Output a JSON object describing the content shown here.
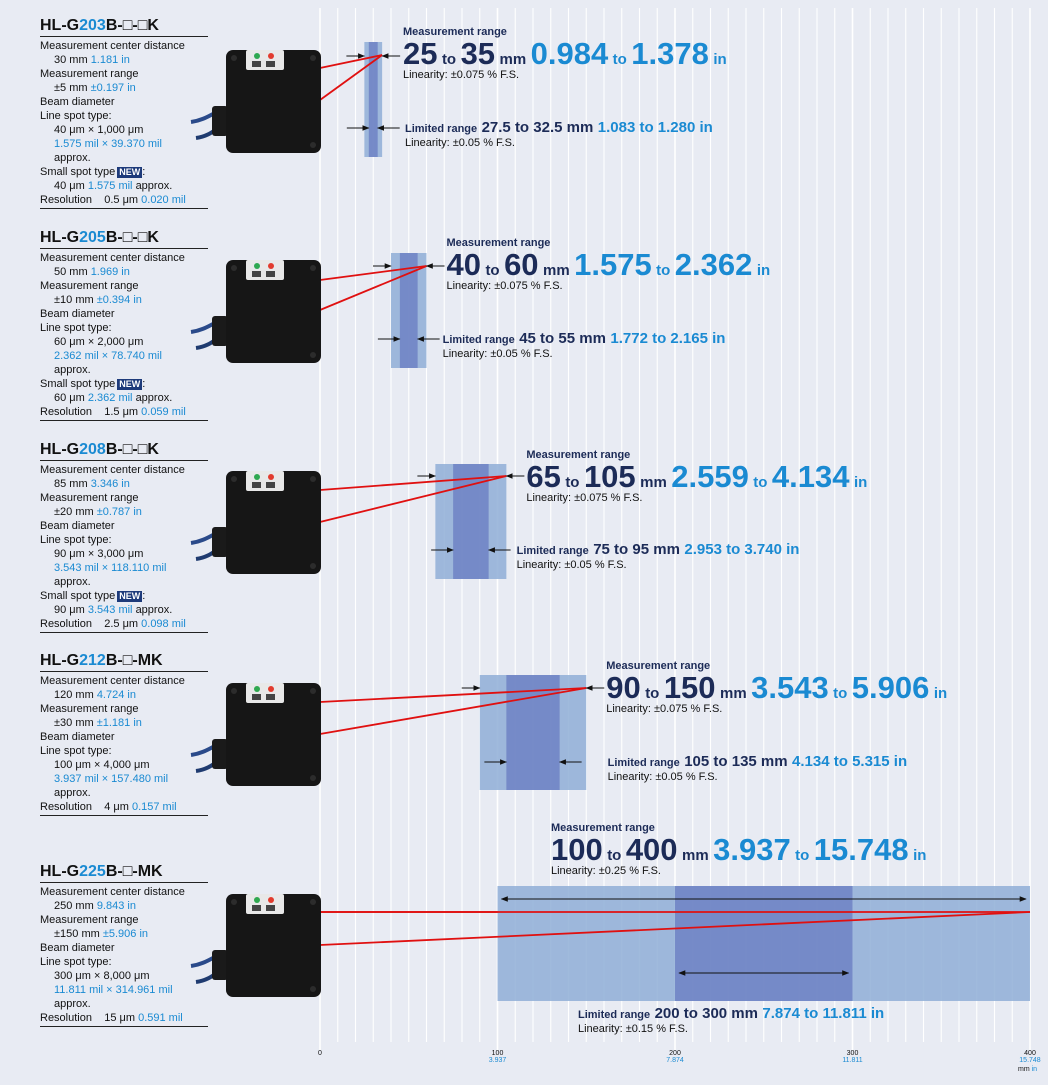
{
  "models": [
    {
      "prefix": "HL-G",
      "num": "203",
      "suffix": "B-□-□K",
      "specs": [
        {
          "t": "Measurement center distance"
        },
        {
          "t": "30 mm",
          "b": "1.181 in",
          "i": true
        },
        {
          "t": "Measurement range"
        },
        {
          "t": "±5 mm",
          "b": "±0.197 in",
          "i": true
        },
        {
          "t": "Beam diameter"
        },
        {
          "t": "Line spot type:"
        },
        {
          "t": "40 μm × 1,000 μm",
          "i": true
        },
        {
          "b": "1.575 mil × 39.370 mil",
          "i": true
        },
        {
          "t": "approx.",
          "i": true
        },
        {
          "t": "Small spot type",
          "badge": "NEW",
          "after": ":"
        },
        {
          "t": "40 μm",
          "b": "1.575 mil",
          "after": "approx.",
          "i": true
        },
        {
          "t": "Resolution",
          "v": "0.5 μm",
          "b": "0.020 mil",
          "last": true
        }
      ],
      "range": {
        "caption": "Measurement range",
        "mm_min": "25",
        "mm_max": "35",
        "in_min": "0.984",
        "in_max": "1.378",
        "linearity": "Linearity: ±0.075 % F.S."
      },
      "limited": {
        "caption": "Limited range",
        "mm": "27.5 to 32.5 mm",
        "inch": "1.083 to 1.280 in",
        "linearity": "Linearity: ±0.05 % F.S."
      },
      "axis_range": [
        25,
        35
      ],
      "axis_limited": [
        27.5,
        32.5
      ]
    },
    {
      "prefix": "HL-G",
      "num": "205",
      "suffix": "B-□-□K",
      "specs": [
        {
          "t": "Measurement center distance"
        },
        {
          "t": "50 mm",
          "b": "1.969 in",
          "i": true
        },
        {
          "t": "Measurement range"
        },
        {
          "t": "±10 mm",
          "b": "±0.394 in",
          "i": true
        },
        {
          "t": "Beam diameter"
        },
        {
          "t": "Line spot type:"
        },
        {
          "t": "60 μm × 2,000 μm",
          "i": true
        },
        {
          "b": "2.362 mil × 78.740 mil",
          "i": true
        },
        {
          "t": "approx.",
          "i": true
        },
        {
          "t": "Small spot type",
          "badge": "NEW",
          "after": ":"
        },
        {
          "t": "60 μm",
          "b": "2.362 mil",
          "after": "approx.",
          "i": true
        },
        {
          "t": "Resolution",
          "v": "1.5 μm",
          "b": "0.059 mil",
          "last": true
        }
      ],
      "range": {
        "caption": "Measurement range",
        "mm_min": "40",
        "mm_max": "60",
        "in_min": "1.575",
        "in_max": "2.362",
        "linearity": "Linearity: ±0.075 % F.S."
      },
      "limited": {
        "caption": "Limited range",
        "mm": "45 to 55 mm",
        "inch": "1.772 to 2.165 in",
        "linearity": "Linearity: ±0.05 % F.S."
      },
      "axis_range": [
        40,
        60
      ],
      "axis_limited": [
        45,
        55
      ]
    },
    {
      "prefix": "HL-G",
      "num": "208",
      "suffix": "B-□-□K",
      "specs": [
        {
          "t": "Measurement center distance"
        },
        {
          "t": "85 mm",
          "b": "3.346 in",
          "i": true
        },
        {
          "t": "Measurement range"
        },
        {
          "t": "±20 mm",
          "b": "±0.787 in",
          "i": true
        },
        {
          "t": "Beam diameter"
        },
        {
          "t": "Line spot type:"
        },
        {
          "t": "90 μm × 3,000 μm",
          "i": true
        },
        {
          "b": "3.543 mil × 118.110 mil",
          "i": true
        },
        {
          "t": "approx.",
          "i": true
        },
        {
          "t": "Small spot type",
          "badge": "NEW",
          "after": ":"
        },
        {
          "t": "90 μm",
          "b": "3.543 mil",
          "after": "approx.",
          "i": true
        },
        {
          "t": "Resolution",
          "v": "2.5 μm",
          "b": "0.098 mil",
          "last": true
        }
      ],
      "range": {
        "caption": "Measurement range",
        "mm_min": "65",
        "mm_max": "105",
        "in_min": "2.559",
        "in_max": "4.134",
        "linearity": "Linearity: ±0.075 % F.S."
      },
      "limited": {
        "caption": "Limited range",
        "mm": "75 to 95 mm",
        "inch": "2.953 to 3.740 in",
        "linearity": "Linearity: ±0.05 % F.S."
      },
      "axis_range": [
        65,
        105
      ],
      "axis_limited": [
        75,
        95
      ]
    },
    {
      "prefix": "HL-G",
      "num": "212",
      "suffix": "B-□-MK",
      "specs": [
        {
          "t": "Measurement center distance"
        },
        {
          "t": "120 mm",
          "b": "4.724 in",
          "i": true
        },
        {
          "t": "Measurement range"
        },
        {
          "t": "±30 mm",
          "b": "±1.181 in",
          "i": true
        },
        {
          "t": "Beam diameter"
        },
        {
          "t": "Line spot type:"
        },
        {
          "t": "100 μm × 4,000 μm",
          "i": true
        },
        {
          "b": "3.937 mil × 157.480 mil",
          "i": true
        },
        {
          "t": "approx.",
          "i": true
        },
        {
          "t": "Resolution",
          "v": "4 μm",
          "b": "0.157 mil",
          "last": true
        }
      ],
      "range": {
        "caption": "Measurement range",
        "mm_min": "90",
        "mm_max": "150",
        "in_min": "3.543",
        "in_max": "5.906",
        "linearity": "Linearity: ±0.075 % F.S."
      },
      "limited": {
        "caption": "Limited range",
        "mm": "105 to 135 mm",
        "inch": "4.134 to 5.315 in",
        "linearity": "Linearity: ±0.05 % F.S."
      },
      "axis_range": [
        90,
        150
      ],
      "axis_limited": [
        105,
        135
      ]
    },
    {
      "prefix": "HL-G",
      "num": "225",
      "suffix": "B-□-MK",
      "specs": [
        {
          "t": "Measurement center distance"
        },
        {
          "t": "250 mm",
          "b": "9.843 in",
          "i": true
        },
        {
          "t": "Measurement range"
        },
        {
          "t": "±150 mm",
          "b": "±5.906 in",
          "i": true
        },
        {
          "t": "Beam diameter"
        },
        {
          "t": "Line spot type:"
        },
        {
          "t": "300 μm × 8,000 μm",
          "i": true
        },
        {
          "b": "11.811 mil × 314.961 mil",
          "i": true
        },
        {
          "t": "approx.",
          "i": true
        },
        {
          "t": "Resolution",
          "v": "15 μm",
          "b": "0.591 mil",
          "last": true
        }
      ],
      "range": {
        "caption": "Measurement range",
        "mm_min": "100",
        "mm_max": "400",
        "in_min": "3.937",
        "in_max": "15.748",
        "linearity": "Linearity: ±0.25 % F.S."
      },
      "limited": {
        "caption": "Limited range",
        "mm": "200 to 300 mm",
        "inch": "7.874 to 11.811 in",
        "linearity": "Linearity: ±0.15 % F.S."
      },
      "axis_range": [
        100,
        400
      ],
      "axis_limited": [
        200,
        300
      ]
    }
  ],
  "words": {
    "to": "to",
    "mm": "mm",
    "in": "in"
  },
  "axis": {
    "ticks": [
      {
        "mm": "0",
        "inch": ""
      },
      {
        "mm": "100",
        "inch": "3.937"
      },
      {
        "mm": "200",
        "inch": "7.874"
      },
      {
        "mm": "300",
        "inch": "11.811"
      },
      {
        "mm": "400",
        "inch": "15.748"
      }
    ],
    "unit_mm": "mm",
    "unit_in": "in"
  },
  "colors": {
    "background": "#e8ebf3",
    "range_fill": "#8faed6",
    "limited_fill": "#6f82c4",
    "laser": "#e01010",
    "dark_blue": "#1c2b57",
    "accent_blue": "#1a8ad2"
  }
}
